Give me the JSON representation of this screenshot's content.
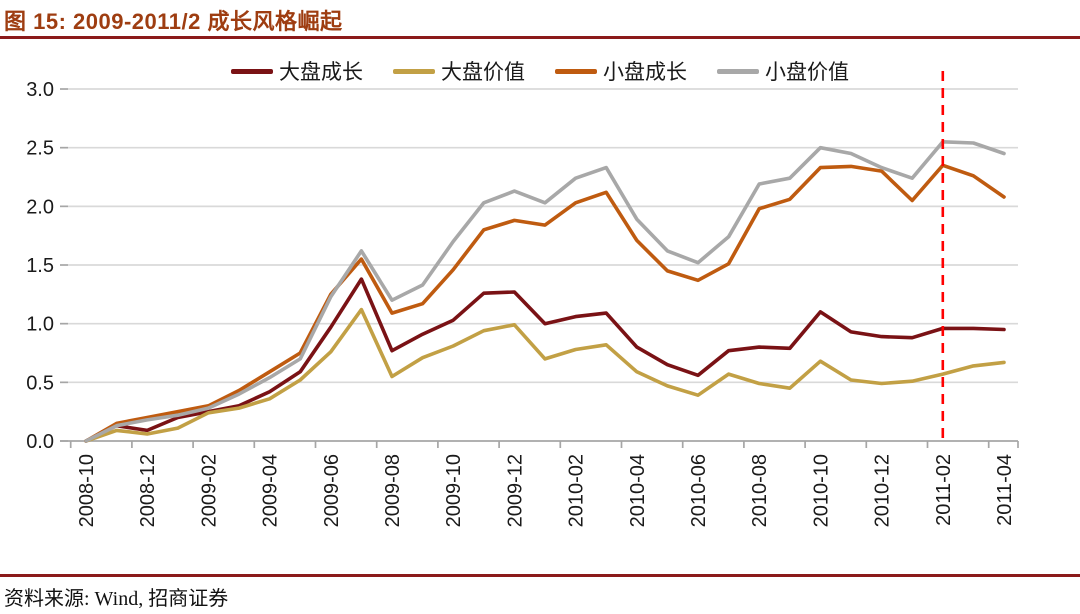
{
  "header": {
    "title": "图 15: 2009-2011/2 成长风格崛起"
  },
  "footer": {
    "source_label": "资料来源: Wind, 招商证券"
  },
  "colors": {
    "title_text": "#9e3d11",
    "header_rule": "#8b1a1a",
    "gridline": "#d9d9d9",
    "axis_line": "#a6a6a6",
    "annotation_red": "#ff0000"
  },
  "chart_data": {
    "type": "line",
    "title": "图 15: 2009-2011/2 成长风格崛起",
    "xlabel": "",
    "ylabel": "",
    "ylim": [
      0.0,
      3.0
    ],
    "ytick_step": 0.5,
    "ytick_labels": [
      "0.0",
      "0.5",
      "1.0",
      "1.5",
      "2.0",
      "2.5",
      "3.0"
    ],
    "grid": true,
    "legend_position": "top",
    "x": [
      "2008-10",
      "2008-11",
      "2008-12",
      "2009-01",
      "2009-02",
      "2009-03",
      "2009-04",
      "2009-05",
      "2009-06",
      "2009-07",
      "2009-08",
      "2009-09",
      "2009-10",
      "2009-11",
      "2009-12",
      "2010-01",
      "2010-02",
      "2010-03",
      "2010-04",
      "2010-05",
      "2010-06",
      "2010-07",
      "2010-08",
      "2010-09",
      "2010-10",
      "2010-11",
      "2010-12",
      "2011-01",
      "2011-02",
      "2011-03",
      "2011-04"
    ],
    "x_tick_labels": [
      "2008-10",
      "2008-12",
      "2009-02",
      "2009-04",
      "2009-06",
      "2009-08",
      "2009-10",
      "2009-12",
      "2010-02",
      "2010-04",
      "2010-06",
      "2010-08",
      "2010-10",
      "2010-12",
      "2011-02",
      "2011-04"
    ],
    "series": [
      {
        "name": "大盘成长",
        "key": "large-cap-growth",
        "color": "#7a1215",
        "values": [
          0.0,
          0.13,
          0.09,
          0.2,
          0.25,
          0.3,
          0.42,
          0.59,
          0.97,
          1.38,
          0.77,
          0.91,
          1.03,
          1.26,
          1.27,
          1.0,
          1.06,
          1.09,
          0.8,
          0.65,
          0.56,
          0.77,
          0.8,
          0.79,
          1.1,
          0.93,
          0.89,
          0.88,
          0.96,
          0.96,
          0.95
        ]
      },
      {
        "name": "大盘价值",
        "key": "large-cap-value",
        "color": "#c2a045",
        "values": [
          0.0,
          0.09,
          0.06,
          0.11,
          0.24,
          0.28,
          0.36,
          0.52,
          0.76,
          1.12,
          0.55,
          0.71,
          0.81,
          0.94,
          0.99,
          0.7,
          0.78,
          0.82,
          0.59,
          0.47,
          0.39,
          0.57,
          0.49,
          0.45,
          0.68,
          0.52,
          0.49,
          0.51,
          0.57,
          0.64,
          0.67
        ]
      },
      {
        "name": "小盘成长",
        "key": "small-cap-growth",
        "color": "#bf5b10",
        "values": [
          0.0,
          0.15,
          0.2,
          0.25,
          0.3,
          0.43,
          0.59,
          0.75,
          1.25,
          1.55,
          1.09,
          1.17,
          1.46,
          1.8,
          1.88,
          1.84,
          2.03,
          2.12,
          1.71,
          1.45,
          1.37,
          1.51,
          1.98,
          2.06,
          2.33,
          2.34,
          2.3,
          2.05,
          2.35,
          2.26,
          2.08
        ]
      },
      {
        "name": "小盘价值",
        "key": "small-cap-value",
        "color": "#a8a8a8",
        "values": [
          0.0,
          0.13,
          0.18,
          0.22,
          0.28,
          0.4,
          0.54,
          0.7,
          1.23,
          1.62,
          1.2,
          1.33,
          1.7,
          2.03,
          2.13,
          2.03,
          2.24,
          2.33,
          1.89,
          1.62,
          1.52,
          1.74,
          2.19,
          2.24,
          2.5,
          2.45,
          2.33,
          2.24,
          2.55,
          2.54,
          2.45
        ]
      }
    ],
    "annotation": {
      "type": "vline",
      "x": "2011-02",
      "style": "dashed",
      "color": "#ff0000"
    }
  }
}
